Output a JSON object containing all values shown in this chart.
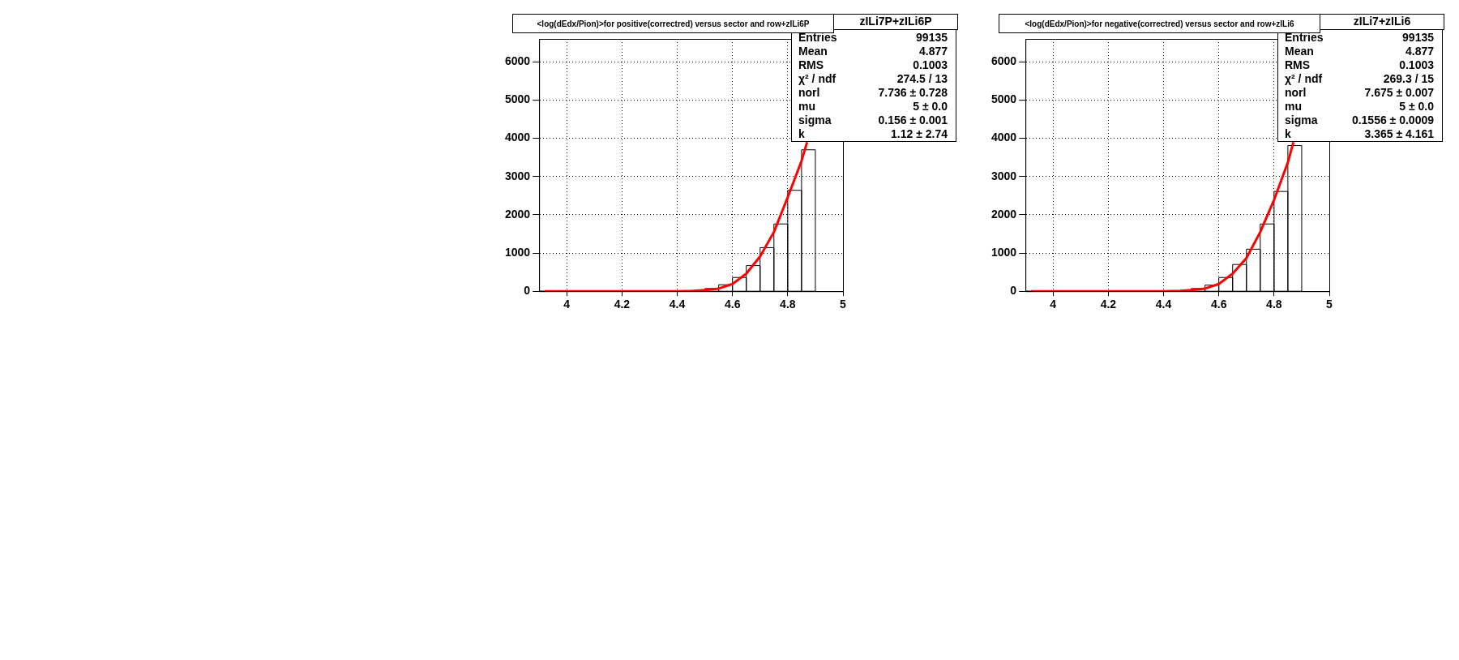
{
  "chart_data": [
    {
      "type": "histogram",
      "title": "<log(dEdx/Pion)>for positive(correctred) versus sector and row+zILi6P",
      "bins": [
        3.9,
        3.95,
        4.0,
        4.05,
        4.1,
        4.15,
        4.2,
        4.25,
        4.3,
        4.35,
        4.4,
        4.45,
        4.5,
        4.55,
        4.6,
        4.65,
        4.7,
        4.75,
        4.8,
        4.85,
        4.9
      ],
      "series": [
        {
          "type": "histogram",
          "color": "#000000",
          "values": [
            0,
            0,
            0,
            0,
            0,
            0,
            0,
            0,
            0,
            0,
            0,
            20,
            70,
            170,
            360,
            670,
            1140,
            1760,
            2640,
            3700
          ]
        },
        {
          "type": "line",
          "color": "#ff0000",
          "x": [
            3.92,
            4.0,
            4.2,
            4.4,
            4.46,
            4.5,
            4.55,
            4.6,
            4.65,
            4.7,
            4.75,
            4.8,
            4.85,
            4.87
          ],
          "values": [
            0,
            0,
            0,
            0,
            10,
            30,
            70,
            190,
            460,
            910,
            1550,
            2460,
            3410,
            3900
          ]
        }
      ],
      "xlim": [
        3.9,
        5.0
      ],
      "xticks": [
        4,
        4.2,
        4.4,
        4.6,
        4.8,
        5
      ],
      "ylim": [
        0,
        6600
      ],
      "yticks": [
        0,
        1000,
        2000,
        3000,
        4000,
        5000,
        6000
      ],
      "grid": true,
      "legend": false,
      "annotations": [
        "zILi7P+zILi6P",
        "Entries",
        "99135",
        "Mean",
        "4.877",
        "RMS",
        "0.1003",
        "χ² / ndf",
        "274.5 / 13",
        "norl",
        "7.736 ± 0.728",
        "mu",
        "5 ± 0.0",
        "sigma",
        "0.156 ± 0.001",
        "k",
        "1.12 ± 2.74"
      ]
    },
    {
      "type": "histogram",
      "title": "<log(dEdx/Pion)>for negative(correctred) versus sector and row+zILi6",
      "bins": [
        3.9,
        3.95,
        4.0,
        4.05,
        4.1,
        4.15,
        4.2,
        4.25,
        4.3,
        4.35,
        4.4,
        4.45,
        4.5,
        4.55,
        4.6,
        4.65,
        4.7,
        4.75,
        4.8,
        4.85,
        4.9
      ],
      "series": [
        {
          "type": "histogram",
          "color": "#000000",
          "values": [
            0,
            0,
            0,
            0,
            0,
            0,
            0,
            0,
            0,
            0,
            0,
            10,
            70,
            160,
            360,
            700,
            1100,
            1760,
            2610,
            3810
          ]
        },
        {
          "type": "line",
          "color": "#ff0000",
          "x": [
            3.92,
            4.0,
            4.2,
            4.4,
            4.46,
            4.5,
            4.55,
            4.6,
            4.65,
            4.7,
            4.75,
            4.8,
            4.85,
            4.87
          ],
          "values": [
            0,
            0,
            0,
            0,
            10,
            30,
            70,
            190,
            460,
            870,
            1550,
            2390,
            3370,
            3900
          ]
        }
      ],
      "xlim": [
        3.9,
        5.0
      ],
      "xticks": [
        4,
        4.2,
        4.4,
        4.6,
        4.8,
        5
      ],
      "ylim": [
        0,
        6600
      ],
      "yticks": [
        0,
        1000,
        2000,
        3000,
        4000,
        5000,
        6000
      ],
      "grid": true,
      "legend": false,
      "annotations": [
        "zILi7+zILi6",
        "Entries",
        "99135",
        "Mean",
        "4.877",
        "RMS",
        "0.1003",
        "χ² / ndf",
        "269.3 / 15",
        "norl",
        "7.675 ± 0.007",
        "mu",
        "5 ± 0.0",
        "sigma",
        "0.1556 ± 0.0009",
        "k",
        "3.365 ± 4.161"
      ]
    }
  ]
}
